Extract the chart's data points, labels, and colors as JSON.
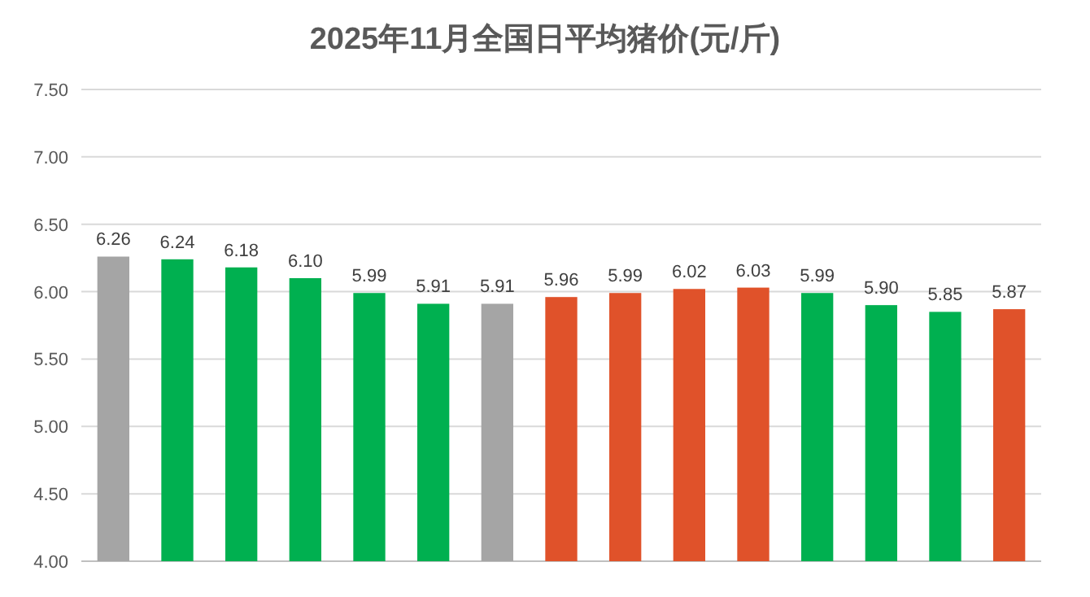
{
  "chart_data": {
    "type": "bar",
    "title": "2025年11月全国日平均猪价(元/斤)",
    "categories": [
      null,
      null,
      null,
      null,
      null,
      null,
      null,
      null,
      null,
      null,
      null,
      null,
      null,
      null,
      null
    ],
    "values": [
      6.26,
      6.24,
      6.18,
      6.1,
      5.99,
      5.91,
      5.91,
      5.96,
      5.99,
      6.02,
      6.03,
      5.99,
      5.9,
      5.85,
      5.87
    ],
    "value_labels": [
      "6.26",
      "6.24",
      "6.18",
      "6.10",
      "5.99",
      "5.91",
      "5.91",
      "5.96",
      "5.99",
      "6.02",
      "6.03",
      "5.99",
      "5.90",
      "5.85",
      "5.87"
    ],
    "colors": [
      "#a5a5a5",
      "#00b050",
      "#00b050",
      "#00b050",
      "#00b050",
      "#00b050",
      "#a5a5a5",
      "#e0522a",
      "#e0522a",
      "#e0522a",
      "#e0522a",
      "#00b050",
      "#00b050",
      "#00b050",
      "#e0522a"
    ],
    "ylim": [
      4,
      7.5
    ],
    "yticks": [
      {
        "value": 4,
        "label": "4.00"
      },
      {
        "value": 4.5,
        "label": "4.50"
      },
      {
        "value": 5,
        "label": "5.00"
      },
      {
        "value": 5.5,
        "label": "5.50"
      },
      {
        "value": 6,
        "label": "6.00"
      },
      {
        "value": 6.5,
        "label": "6.50"
      },
      {
        "value": 7,
        "label": "7.00"
      },
      {
        "value": 7.5,
        "label": "7.50"
      }
    ],
    "grid": true
  }
}
